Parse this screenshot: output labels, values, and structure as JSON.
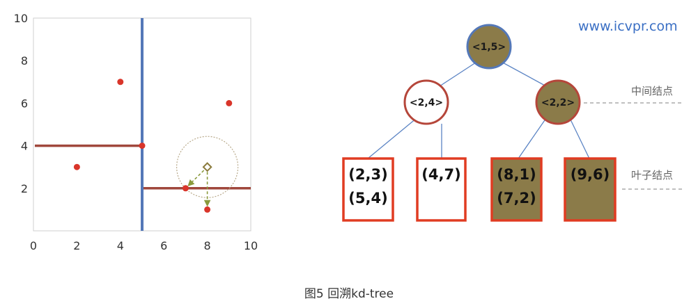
{
  "watermark": "www.icvpr.com",
  "caption": "图5 回溯kd-tree",
  "colors": {
    "point": "#d9352a",
    "split_vertical": "#5478b8",
    "split_horizontal": "#a0473c",
    "node_fill_dark": "#8b7b49",
    "node_fill_light": "#ffffff",
    "node_border": "#b5463a",
    "root_border": "#5478b8",
    "leaf_border": "#e03c22",
    "edge": "#5b84c4",
    "watermark": "#3a6fc4",
    "dashed": "#999999",
    "search_circle": "#b8a98a",
    "search_path": "#8a9a3c"
  },
  "plot": {
    "x_ticks": [
      "0",
      "2",
      "4",
      "6",
      "8",
      "10"
    ],
    "y_ticks": [
      "10",
      "8",
      "6",
      "4",
      "2"
    ],
    "xlim": [
      0,
      10
    ],
    "ylim": [
      0,
      10
    ],
    "points": [
      {
        "x": 2,
        "y": 3
      },
      {
        "x": 5,
        "y": 4
      },
      {
        "x": 4,
        "y": 7
      },
      {
        "x": 9,
        "y": 6
      },
      {
        "x": 8,
        "y": 1
      },
      {
        "x": 7,
        "y": 2
      }
    ],
    "vertical_split": {
      "x": 5,
      "y_from": 0,
      "y_to": 10
    },
    "horizontal_splits": [
      {
        "y": 4,
        "x_from": 0,
        "x_to": 5
      },
      {
        "y": 2,
        "x_from": 5,
        "x_to": 10
      }
    ],
    "query_point": {
      "x": 8,
      "y": 3
    },
    "search_radius": 1.41
  },
  "tree": {
    "root": {
      "label": "<1,5>"
    },
    "left_child": {
      "label": "<2,4>"
    },
    "right_child": {
      "label": "<2,2>"
    },
    "leaves": [
      {
        "lines": [
          "(2,3)",
          "(5,4)"
        ],
        "filled": false
      },
      {
        "lines": [
          "(4,7)"
        ],
        "filled": false
      },
      {
        "lines": [
          "(8,1)",
          "(7,2)"
        ],
        "filled": true
      },
      {
        "lines": [
          "(9,6)"
        ],
        "filled": true
      }
    ],
    "internal_label": "中间结点",
    "leaf_label": "叶子结点"
  }
}
